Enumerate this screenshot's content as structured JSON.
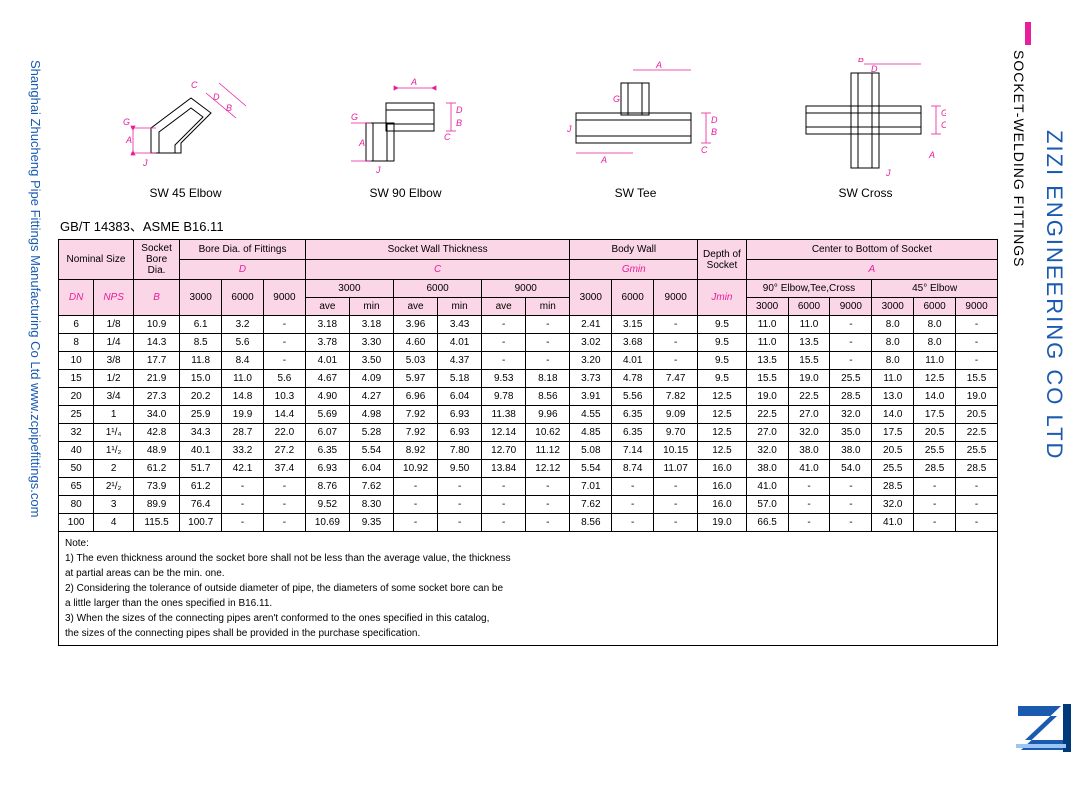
{
  "side_left": "Shanghai Zhucheng Pipe Fittings Manufacturing Co Ltd   www.zcpipefittings.com",
  "side_right_brand": "ZIZI ENGINEERING CO LTD",
  "side_right_title": "SOCKET-WELDING FITTINGS",
  "standard": "GB/T 14383、ASME B16.11",
  "diagram_labels": {
    "d1": "SW 45 Elbow",
    "d2": "SW 90 Elbow",
    "d3": "SW Tee",
    "d4": "SW Cross"
  },
  "header": {
    "nominal_size": "Nominal Size",
    "socket_bore_dia": "Socket Bore Dia.",
    "bore_dia": "Bore Dia. of Fittings",
    "swt": "Socket Wall Thickness",
    "body_wall": "Body Wall",
    "depth": "Depth of Socket",
    "ctb": "Center to Bottom of Socket",
    "DN": "DN",
    "NPS": "NPS",
    "B": "B",
    "D": "D",
    "C": "C",
    "Gmin": "Gmin",
    "Jmin": "Jmin",
    "A": "A",
    "p3000": "3000",
    "p6000": "6000",
    "p9000": "9000",
    "ave": "ave",
    "min": "min",
    "etc": "90° Elbow,Tee,Cross",
    "e45": "45° Elbow"
  },
  "rows": [
    {
      "dn": "6",
      "nps": "1/8",
      "b": "10.9",
      "d": [
        "6.1",
        "3.2",
        "-"
      ],
      "c3": [
        "3.18",
        "3.18"
      ],
      "c6": [
        "3.96",
        "3.43"
      ],
      "c9": [
        "-",
        "-"
      ],
      "g": [
        "2.41",
        "3.15",
        "-"
      ],
      "j": "9.5",
      "a90": [
        "11.0",
        "11.0",
        "-"
      ],
      "a45": [
        "8.0",
        "8.0",
        "-"
      ]
    },
    {
      "dn": "8",
      "nps": "1/4",
      "b": "14.3",
      "d": [
        "8.5",
        "5.6",
        "-"
      ],
      "c3": [
        "3.78",
        "3.30"
      ],
      "c6": [
        "4.60",
        "4.01"
      ],
      "c9": [
        "-",
        "-"
      ],
      "g": [
        "3.02",
        "3.68",
        "-"
      ],
      "j": "9.5",
      "a90": [
        "11.0",
        "13.5",
        "-"
      ],
      "a45": [
        "8.0",
        "8.0",
        "-"
      ]
    },
    {
      "dn": "10",
      "nps": "3/8",
      "b": "17.7",
      "d": [
        "11.8",
        "8.4",
        "-"
      ],
      "c3": [
        "4.01",
        "3.50"
      ],
      "c6": [
        "5.03",
        "4.37"
      ],
      "c9": [
        "-",
        "-"
      ],
      "g": [
        "3.20",
        "4.01",
        "-"
      ],
      "j": "9.5",
      "a90": [
        "13.5",
        "15.5",
        "-"
      ],
      "a45": [
        "8.0",
        "11.0",
        "-"
      ]
    },
    {
      "dn": "15",
      "nps": "1/2",
      "b": "21.9",
      "d": [
        "15.0",
        "11.0",
        "5.6"
      ],
      "c3": [
        "4.67",
        "4.09"
      ],
      "c6": [
        "5.97",
        "5.18"
      ],
      "c9": [
        "9.53",
        "8.18"
      ],
      "g": [
        "3.73",
        "4.78",
        "7.47"
      ],
      "j": "9.5",
      "a90": [
        "15.5",
        "19.0",
        "25.5"
      ],
      "a45": [
        "11.0",
        "12.5",
        "15.5"
      ],
      "sep": true
    },
    {
      "dn": "20",
      "nps": "3/4",
      "b": "27.3",
      "d": [
        "20.2",
        "14.8",
        "10.3"
      ],
      "c3": [
        "4.90",
        "4.27"
      ],
      "c6": [
        "6.96",
        "6.04"
      ],
      "c9": [
        "9.78",
        "8.56"
      ],
      "g": [
        "3.91",
        "5.56",
        "7.82"
      ],
      "j": "12.5",
      "a90": [
        "19.0",
        "22.5",
        "28.5"
      ],
      "a45": [
        "13.0",
        "14.0",
        "19.0"
      ]
    },
    {
      "dn": "25",
      "nps": "1",
      "b": "34.0",
      "d": [
        "25.9",
        "19.9",
        "14.4"
      ],
      "c3": [
        "5.69",
        "4.98"
      ],
      "c6": [
        "7.92",
        "6.93"
      ],
      "c9": [
        "11.38",
        "9.96"
      ],
      "g": [
        "4.55",
        "6.35",
        "9.09"
      ],
      "j": "12.5",
      "a90": [
        "22.5",
        "27.0",
        "32.0"
      ],
      "a45": [
        "14.0",
        "17.5",
        "20.5"
      ]
    },
    {
      "dn": "32",
      "nps": "1¹/₄",
      "b": "42.8",
      "d": [
        "34.3",
        "28.7",
        "22.0"
      ],
      "c3": [
        "6.07",
        "5.28"
      ],
      "c6": [
        "7.92",
        "6.93"
      ],
      "c9": [
        "12.14",
        "10.62"
      ],
      "g": [
        "4.85",
        "6.35",
        "9.70"
      ],
      "j": "12.5",
      "a90": [
        "27.0",
        "32.0",
        "35.0"
      ],
      "a45": [
        "17.5",
        "20.5",
        "22.5"
      ],
      "sep": true
    },
    {
      "dn": "40",
      "nps": "1¹/₂",
      "b": "48.9",
      "d": [
        "40.1",
        "33.2",
        "27.2"
      ],
      "c3": [
        "6.35",
        "5.54"
      ],
      "c6": [
        "8.92",
        "7.80"
      ],
      "c9": [
        "12.70",
        "11.12"
      ],
      "g": [
        "5.08",
        "7.14",
        "10.15"
      ],
      "j": "12.5",
      "a90": [
        "32.0",
        "38.0",
        "38.0"
      ],
      "a45": [
        "20.5",
        "25.5",
        "25.5"
      ]
    },
    {
      "dn": "50",
      "nps": "2",
      "b": "61.2",
      "d": [
        "51.7",
        "42.1",
        "37.4"
      ],
      "c3": [
        "6.93",
        "6.04"
      ],
      "c6": [
        "10.92",
        "9.50"
      ],
      "c9": [
        "13.84",
        "12.12"
      ],
      "g": [
        "5.54",
        "8.74",
        "11.07"
      ],
      "j": "16.0",
      "a90": [
        "38.0",
        "41.0",
        "54.0"
      ],
      "a45": [
        "25.5",
        "28.5",
        "28.5"
      ]
    },
    {
      "dn": "65",
      "nps": "2¹/₂",
      "b": "73.9",
      "d": [
        "61.2",
        "-",
        "-"
      ],
      "c3": [
        "8.76",
        "7.62"
      ],
      "c6": [
        "-",
        "-"
      ],
      "c9": [
        "-",
        "-"
      ],
      "g": [
        "7.01",
        "-",
        "-"
      ],
      "j": "16.0",
      "a90": [
        "41.0",
        "-",
        "-"
      ],
      "a45": [
        "28.5",
        "-",
        "-"
      ],
      "sep": true
    },
    {
      "dn": "80",
      "nps": "3",
      "b": "89.9",
      "d": [
        "76.4",
        "-",
        "-"
      ],
      "c3": [
        "9.52",
        "8.30"
      ],
      "c6": [
        "-",
        "-"
      ],
      "c9": [
        "-",
        "-"
      ],
      "g": [
        "7.62",
        "-",
        "-"
      ],
      "j": "16.0",
      "a90": [
        "57.0",
        "-",
        "-"
      ],
      "a45": [
        "32.0",
        "-",
        "-"
      ]
    },
    {
      "dn": "100",
      "nps": "4",
      "b": "115.5",
      "d": [
        "100.7",
        "-",
        "-"
      ],
      "c3": [
        "10.69",
        "9.35"
      ],
      "c6": [
        "-",
        "-"
      ],
      "c9": [
        "-",
        "-"
      ],
      "g": [
        "8.56",
        "-",
        "-"
      ],
      "j": "19.0",
      "a90": [
        "66.5",
        "-",
        "-"
      ],
      "a45": [
        "41.0",
        "-",
        "-"
      ]
    }
  ],
  "notes": {
    "title": "Note:",
    "n1a": "1)   The even thickness around the socket bore shall not be less than the average value, the thickness",
    "n1b": "      at partial areas can be the min. one.",
    "n2a": "2)   Considering the tolerance of outside diameter of pipe, the diameters of some socket bore can be",
    "n2b": "      a little larger than the ones specified in B16.11.",
    "n3a": "3)   When the sizes of the connecting pipes aren't conformed to the ones specified in this catalog,",
    "n3b": "      the sizes of the connecting pipes shall be provided in the purchase specification."
  },
  "colors": {
    "pink": "#fbd6e6",
    "magenta": "#e91e9c",
    "blue": "#1a5bb0"
  }
}
